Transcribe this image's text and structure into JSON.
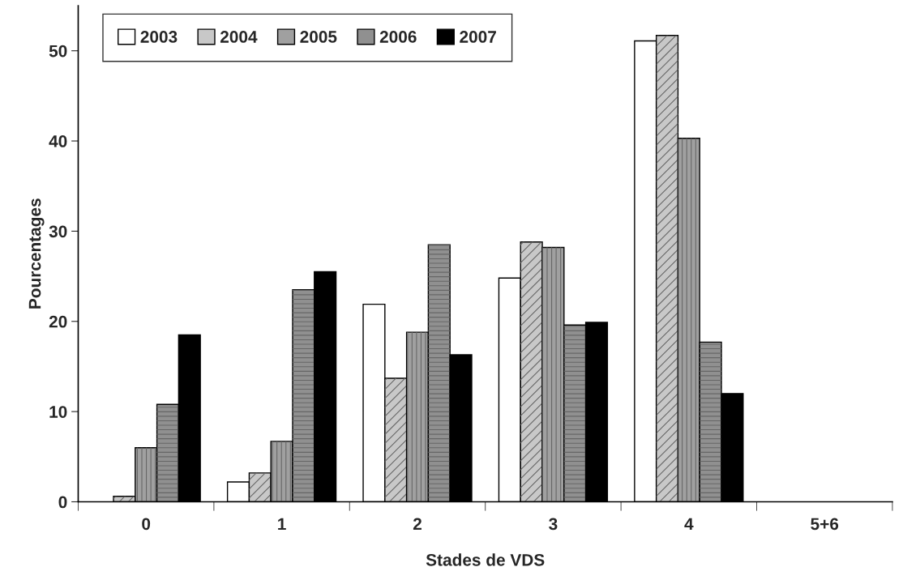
{
  "chart_data": {
    "type": "bar",
    "xlabel": "Stades de VDS",
    "ylabel": "Pourcentages",
    "categories": [
      "0",
      "1",
      "2",
      "3",
      "4",
      "5+6"
    ],
    "series": [
      {
        "name": "2003",
        "color": "#ffffff",
        "values": [
          null,
          2.2,
          21.9,
          24.8,
          51.1,
          null
        ]
      },
      {
        "name": "2004",
        "color": "#c8c8c8",
        "values": [
          0.6,
          3.2,
          13.7,
          28.8,
          51.7,
          null
        ]
      },
      {
        "name": "2005",
        "color": "#a0a0a0",
        "values": [
          6.0,
          6.7,
          18.8,
          28.2,
          40.3,
          null
        ]
      },
      {
        "name": "2006",
        "color": "#909090",
        "values": [
          10.8,
          23.5,
          28.5,
          19.6,
          17.7,
          null
        ]
      },
      {
        "name": "2007",
        "color": "#000000",
        "values": [
          18.5,
          25.5,
          16.3,
          19.9,
          12.0,
          null
        ]
      }
    ],
    "ylim": [
      0,
      55
    ],
    "yticks": [
      0,
      10,
      20,
      30,
      40,
      50
    ],
    "grid": false,
    "legend": "top left"
  }
}
